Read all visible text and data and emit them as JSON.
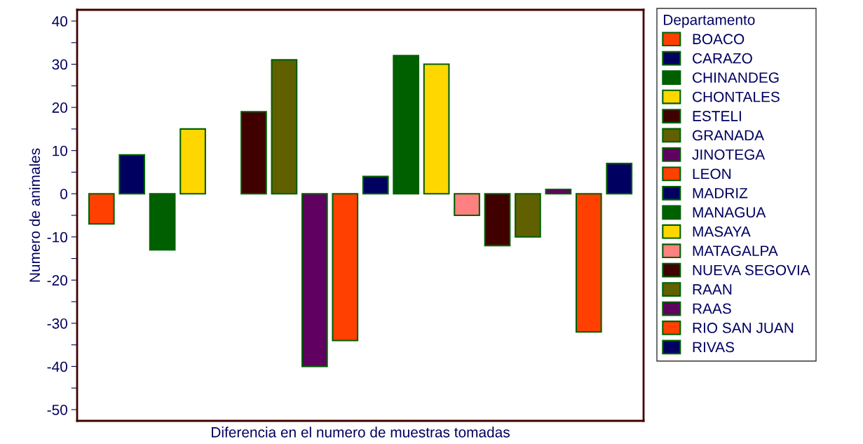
{
  "chart_data": {
    "type": "bar",
    "xlabel": "Diferencia en el numero de muestras tomadas",
    "ylabel": "Numero de animales",
    "legend_title": "Departamento",
    "legend": "right",
    "categories": [
      null,
      null,
      null,
      null,
      null,
      null,
      null,
      null,
      null,
      null,
      null,
      null,
      null,
      null,
      null,
      null,
      null,
      null
    ],
    "series": [
      {
        "name": "BOACO",
        "color": "#ff4000",
        "values": [
          -7,
          null,
          null,
          null,
          null,
          null,
          null,
          null,
          null,
          null,
          null,
          null,
          null,
          null,
          null,
          null,
          null,
          null
        ]
      },
      {
        "name": "CARAZO",
        "color": "#000060",
        "values": [
          null,
          9,
          null,
          null,
          null,
          null,
          null,
          null,
          null,
          null,
          null,
          null,
          null,
          null,
          null,
          null,
          null,
          null
        ]
      },
      {
        "name": "CHINANDEG",
        "color": "#006000",
        "values": [
          null,
          null,
          -13,
          null,
          null,
          null,
          null,
          null,
          null,
          null,
          null,
          null,
          null,
          null,
          null,
          null,
          null,
          null
        ]
      },
      {
        "name": "CHONTALES",
        "color": "#ffd700",
        "values": [
          null,
          null,
          null,
          15,
          null,
          null,
          null,
          null,
          null,
          null,
          null,
          null,
          null,
          null,
          null,
          null,
          null,
          null
        ]
      },
      {
        "name": "ESTELI",
        "color": "#400000",
        "values": [
          null,
          null,
          null,
          null,
          null,
          19,
          null,
          null,
          null,
          null,
          null,
          null,
          null,
          null,
          null,
          null,
          null,
          null
        ]
      },
      {
        "name": "GRANADA",
        "color": "#606000",
        "values": [
          null,
          null,
          null,
          null,
          null,
          null,
          31,
          null,
          null,
          null,
          null,
          null,
          null,
          null,
          null,
          null,
          null,
          null
        ]
      },
      {
        "name": "JINOTEGA",
        "color": "#600060",
        "values": [
          null,
          null,
          null,
          null,
          null,
          null,
          null,
          -40,
          null,
          null,
          null,
          null,
          null,
          null,
          null,
          null,
          null,
          null
        ]
      },
      {
        "name": "LEON",
        "color": "#ff4000",
        "values": [
          null,
          null,
          null,
          null,
          null,
          null,
          null,
          null,
          -34,
          null,
          null,
          null,
          null,
          null,
          null,
          null,
          null,
          null
        ]
      },
      {
        "name": "MADRIZ",
        "color": "#000060",
        "values": [
          null,
          null,
          null,
          null,
          null,
          null,
          null,
          null,
          null,
          4,
          null,
          null,
          null,
          null,
          null,
          null,
          null,
          null
        ]
      },
      {
        "name": "MANAGUA",
        "color": "#006000",
        "values": [
          null,
          null,
          null,
          null,
          null,
          null,
          null,
          null,
          null,
          null,
          32,
          null,
          null,
          null,
          null,
          null,
          null,
          null
        ]
      },
      {
        "name": "MASAYA",
        "color": "#ffd700",
        "values": [
          null,
          null,
          null,
          null,
          null,
          null,
          null,
          null,
          null,
          null,
          null,
          30,
          null,
          null,
          null,
          null,
          null,
          null
        ]
      },
      {
        "name": "MATAGALPA",
        "color": "#ff8080",
        "values": [
          null,
          null,
          null,
          null,
          null,
          null,
          null,
          null,
          null,
          null,
          null,
          null,
          -5,
          null,
          null,
          null,
          null,
          null
        ]
      },
      {
        "name": "NUEVA SEGOVIA",
        "color": "#400000",
        "values": [
          null,
          null,
          null,
          null,
          null,
          null,
          null,
          null,
          null,
          null,
          null,
          null,
          null,
          -12,
          null,
          null,
          null,
          null
        ]
      },
      {
        "name": "RAAN",
        "color": "#606000",
        "values": [
          null,
          null,
          null,
          null,
          null,
          null,
          null,
          null,
          null,
          null,
          null,
          null,
          null,
          null,
          -10,
          null,
          null,
          null
        ]
      },
      {
        "name": "RAAS",
        "color": "#600060",
        "values": [
          null,
          null,
          null,
          null,
          null,
          null,
          null,
          null,
          null,
          null,
          null,
          null,
          null,
          null,
          null,
          1,
          null,
          null
        ]
      },
      {
        "name": "RIO SAN JUAN",
        "color": "#ff4000",
        "values": [
          null,
          null,
          null,
          null,
          null,
          null,
          null,
          null,
          null,
          null,
          null,
          null,
          null,
          null,
          null,
          null,
          -32,
          null
        ]
      },
      {
        "name": "RIVAS",
        "color": "#000060",
        "values": [
          null,
          null,
          null,
          null,
          null,
          null,
          null,
          null,
          null,
          null,
          null,
          null,
          null,
          null,
          null,
          null,
          null,
          7
        ]
      }
    ],
    "ylim": [
      -52.6,
      42.6
    ],
    "yticks": [
      {
        "value": -50,
        "label": "-50"
      },
      {
        "value": -45,
        "label": null
      },
      {
        "value": -40,
        "label": "-40"
      },
      {
        "value": -35,
        "label": null
      },
      {
        "value": -30,
        "label": "-30"
      },
      {
        "value": -25,
        "label": null
      },
      {
        "value": -20,
        "label": "-20"
      },
      {
        "value": -15,
        "label": null
      },
      {
        "value": -10,
        "label": "-10"
      },
      {
        "value": -5,
        "label": null
      },
      0,
      {
        "value": 5,
        "label": null
      },
      10,
      {
        "value": 15,
        "label": null
      },
      20,
      {
        "value": 25,
        "label": null
      },
      30,
      {
        "value": 35,
        "label": null
      },
      40
    ],
    "tick_labels": "y",
    "grid": false
  }
}
